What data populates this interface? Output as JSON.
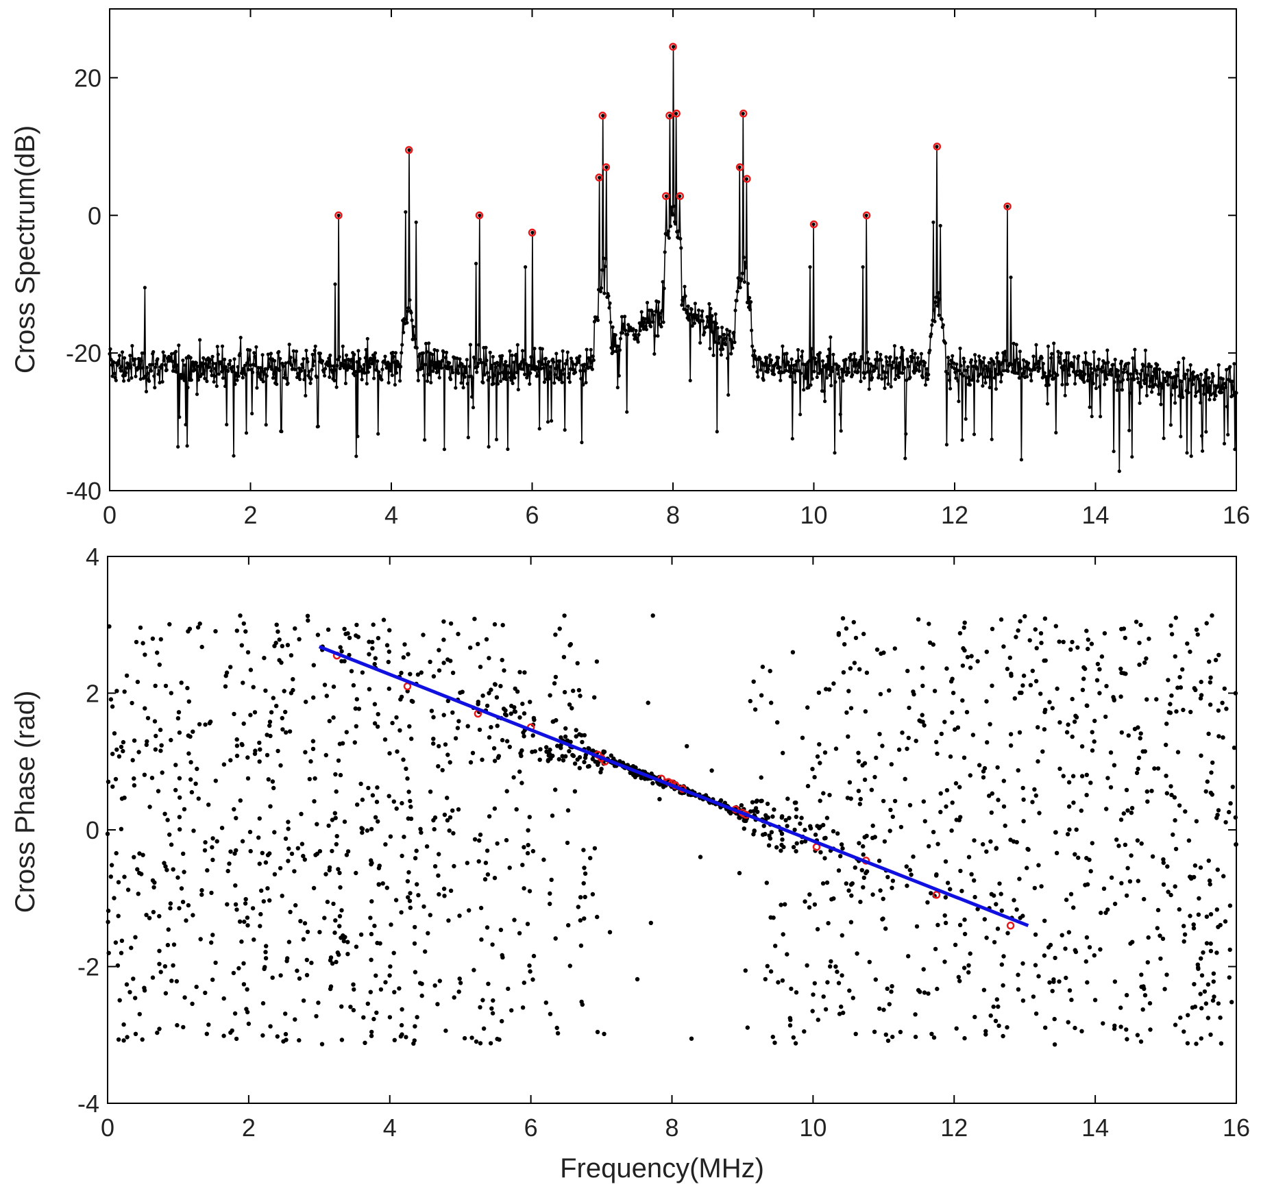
{
  "chart_data": [
    {
      "id": "spectrum",
      "type": "line",
      "title": "",
      "xlabel": "",
      "ylabel": "Cross Spectrum(dB)",
      "xlim": [
        0,
        16
      ],
      "ylim": [
        -40,
        30
      ],
      "xticks": [
        "0",
        "2",
        "4",
        "6",
        "8",
        "10",
        "12",
        "14",
        "16"
      ],
      "yticks": [
        "-40",
        "-20",
        "0",
        "20"
      ],
      "grid": false,
      "legend": "none",
      "colors": {
        "line": "#000000",
        "markers": "#000000",
        "peaks": "#e8191b"
      },
      "baseline_db": -22,
      "peaks": [
        {
          "f": 3.25,
          "db": 0.0
        },
        {
          "f": 4.25,
          "db": 9.5
        },
        {
          "f": 5.25,
          "db": 0.0
        },
        {
          "f": 6.0,
          "db": -2.5
        },
        {
          "f": 6.95,
          "db": 5.5
        },
        {
          "f": 7.0,
          "db": 14.5
        },
        {
          "f": 7.05,
          "db": 7.0
        },
        {
          "f": 7.9,
          "db": 2.8
        },
        {
          "f": 7.95,
          "db": 14.5
        },
        {
          "f": 8.0,
          "db": 24.5
        },
        {
          "f": 8.05,
          "db": 14.8
        },
        {
          "f": 8.1,
          "db": 2.8
        },
        {
          "f": 8.95,
          "db": 7.0
        },
        {
          "f": 9.0,
          "db": 14.8
        },
        {
          "f": 9.05,
          "db": 5.3
        },
        {
          "f": 10.0,
          "db": -1.3
        },
        {
          "f": 10.75,
          "db": 0.0
        },
        {
          "f": 11.75,
          "db": 10.0
        },
        {
          "f": 12.75,
          "db": 1.3
        }
      ],
      "secondary_spikes": [
        {
          "f": 0.5,
          "db": -10.5
        },
        {
          "f": 3.2,
          "db": -10
        },
        {
          "f": 4.2,
          "db": 0.5
        },
        {
          "f": 4.35,
          "db": -1
        },
        {
          "f": 5.2,
          "db": -7
        },
        {
          "f": 5.9,
          "db": -7.5
        },
        {
          "f": 9.95,
          "db": -7.5
        },
        {
          "f": 10.7,
          "db": -7.5
        },
        {
          "f": 11.7,
          "db": -1
        },
        {
          "f": 11.8,
          "db": -1.5
        },
        {
          "f": 12.8,
          "db": -9
        }
      ],
      "notable_dips": [
        {
          "f": 3.5,
          "db": -35
        },
        {
          "f": 4.75,
          "db": -34
        },
        {
          "f": 1.1,
          "db": -33.5
        },
        {
          "f": 6.1,
          "db": -31
        },
        {
          "f": 10.3,
          "db": -34.5
        },
        {
          "f": 12.95,
          "db": -35.5
        },
        {
          "f": 15.3,
          "db": -34.5
        }
      ]
    },
    {
      "id": "phase",
      "type": "scatter",
      "title": "",
      "xlabel": "Frequency(MHz)",
      "ylabel": "Cross Phase (rad)",
      "xlim": [
        0,
        16
      ],
      "ylim": [
        -4,
        4
      ],
      "xticks": [
        "0",
        "2",
        "4",
        "6",
        "8",
        "10",
        "12",
        "14",
        "16"
      ],
      "yticks": [
        "-4",
        "-2",
        "0",
        "2",
        "4"
      ],
      "grid": false,
      "legend": "none",
      "colors": {
        "points": "#000000",
        "peaks": "#e8191b",
        "fit": "#1010e0"
      },
      "fit_line": {
        "x": [
          3.0,
          13.05
        ],
        "y": [
          2.68,
          -1.4
        ]
      },
      "peak_points": [
        {
          "f": 3.25,
          "phase": 2.55
        },
        {
          "f": 4.25,
          "phase": 2.1
        },
        {
          "f": 5.25,
          "phase": 1.7
        },
        {
          "f": 6.0,
          "phase": 1.5
        },
        {
          "f": 6.95,
          "phase": 1.1
        },
        {
          "f": 7.0,
          "phase": 1.05
        },
        {
          "f": 7.05,
          "phase": 1.0
        },
        {
          "f": 7.85,
          "phase": 0.75
        },
        {
          "f": 7.95,
          "phase": 0.7
        },
        {
          "f": 8.0,
          "phase": 0.68
        },
        {
          "f": 8.05,
          "phase": 0.65
        },
        {
          "f": 8.15,
          "phase": 0.6
        },
        {
          "f": 8.9,
          "phase": 0.3
        },
        {
          "f": 9.0,
          "phase": 0.25
        },
        {
          "f": 9.05,
          "phase": 0.22
        },
        {
          "f": 10.05,
          "phase": -0.25
        },
        {
          "f": 10.75,
          "phase": -0.45
        },
        {
          "f": 11.75,
          "phase": -0.95
        },
        {
          "f": 12.8,
          "phase": -1.4
        }
      ],
      "point_cloud": {
        "note": "≈2000 cross-phase samples: tight cluster along the fit near strong peaks, uniformly scattered in [-π, π] elsewhere",
        "n_points": 2000
      }
    }
  ]
}
